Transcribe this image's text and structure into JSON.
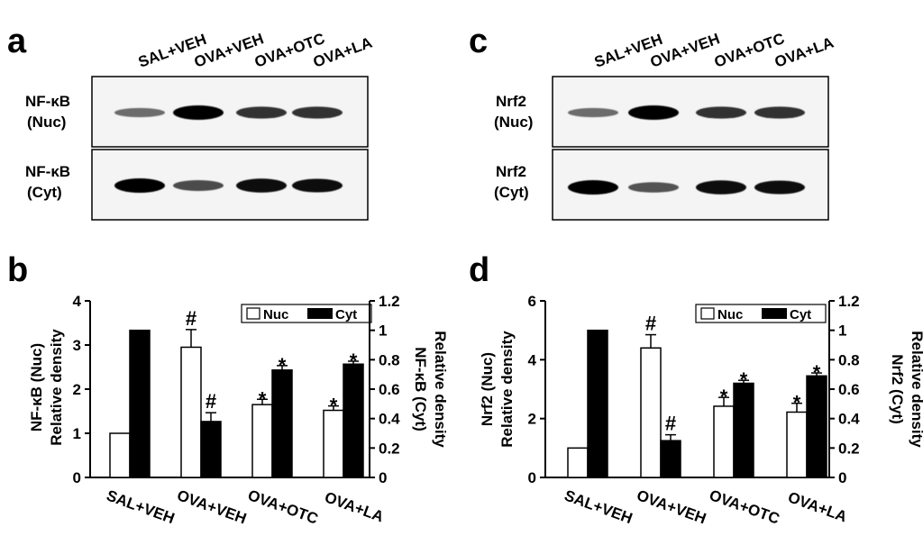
{
  "panels": {
    "a": "a",
    "b": "b",
    "c": "c",
    "d": "d"
  },
  "lanes": [
    "SAL+VEH",
    "OVA+VEH",
    "OVA+OTC",
    "OVA+LA"
  ],
  "blots": [
    {
      "panel": "a",
      "rows": [
        {
          "label_line1": "NF-κB",
          "label_line2": "(Nuc)",
          "intensity": [
            0.35,
            1.0,
            0.7,
            0.7
          ]
        },
        {
          "label_line1": "NF-κB",
          "label_line2": "(Cyt)",
          "intensity": [
            1.0,
            0.55,
            0.95,
            0.9
          ]
        }
      ]
    },
    {
      "panel": "c",
      "rows": [
        {
          "label_line1": "Nrf2",
          "label_line2": "(Nuc)",
          "intensity": [
            0.35,
            1.0,
            0.7,
            0.7
          ]
        },
        {
          "label_line1": "Nrf2",
          "label_line2": "(Cyt)",
          "intensity": [
            1.0,
            0.5,
            0.95,
            0.9
          ]
        }
      ]
    }
  ],
  "legend": {
    "nuc": "Nuc",
    "cyt": "Cyt"
  },
  "chart_data": [
    {
      "panel": "b",
      "type": "bar",
      "categories": [
        "SAL+VEH",
        "OVA+VEH",
        "OVA+OTC",
        "OVA+LA"
      ],
      "ylabel_left_line1": "NF-κB (Nuc)",
      "ylabel_left_line2": "Relative density",
      "ylabel_right_line1": "NF-κB (Cyt)",
      "ylabel_right_line2": "Relative density",
      "ylim_left": [
        0,
        4
      ],
      "yticks_left": [
        0,
        1,
        2,
        3,
        4
      ],
      "ylim_right": [
        0,
        1.2
      ],
      "yticks_right": [
        0,
        0.2,
        0.4,
        0.6,
        0.8,
        1,
        1.2
      ],
      "series": [
        {
          "name": "Nuc",
          "axis": "left",
          "color": "#ffffff",
          "values": [
            1.0,
            2.95,
            1.65,
            1.52
          ],
          "errors": [
            0,
            0.4,
            0.12,
            0.1
          ],
          "marks": [
            "",
            "#",
            "*",
            "*"
          ]
        },
        {
          "name": "Cyt",
          "axis": "right",
          "color": "#000000",
          "values": [
            1.0,
            0.38,
            0.73,
            0.77
          ],
          "errors": [
            0,
            0.06,
            0.03,
            0.02
          ],
          "marks": [
            "",
            "#",
            "*",
            "*"
          ]
        }
      ]
    },
    {
      "panel": "d",
      "type": "bar",
      "categories": [
        "SAL+VEH",
        "OVA+VEH",
        "OVA+OTC",
        "OVA+LA"
      ],
      "ylabel_left_line1": "Nrf2 (Nuc)",
      "ylabel_left_line2": "Relative density",
      "ylabel_right_line1": "Nrf2 (Cyt)",
      "ylabel_right_line2": "Relative density",
      "ylim_left": [
        0,
        6
      ],
      "yticks_left": [
        0,
        2,
        4,
        6
      ],
      "ylim_right": [
        0,
        1.2
      ],
      "yticks_right": [
        0,
        0.2,
        0.4,
        0.6,
        0.8,
        1,
        1.2
      ],
      "series": [
        {
          "name": "Nuc",
          "axis": "left",
          "color": "#ffffff",
          "values": [
            1.0,
            4.4,
            2.42,
            2.22
          ],
          "errors": [
            0,
            0.45,
            0.3,
            0.3
          ],
          "marks": [
            "",
            "#",
            "*",
            "*"
          ]
        },
        {
          "name": "Cyt",
          "axis": "right",
          "color": "#000000",
          "values": [
            1.0,
            0.25,
            0.64,
            0.69
          ],
          "errors": [
            0,
            0.04,
            0.02,
            0.02
          ],
          "marks": [
            "",
            "#",
            "*",
            "*"
          ]
        }
      ]
    }
  ]
}
